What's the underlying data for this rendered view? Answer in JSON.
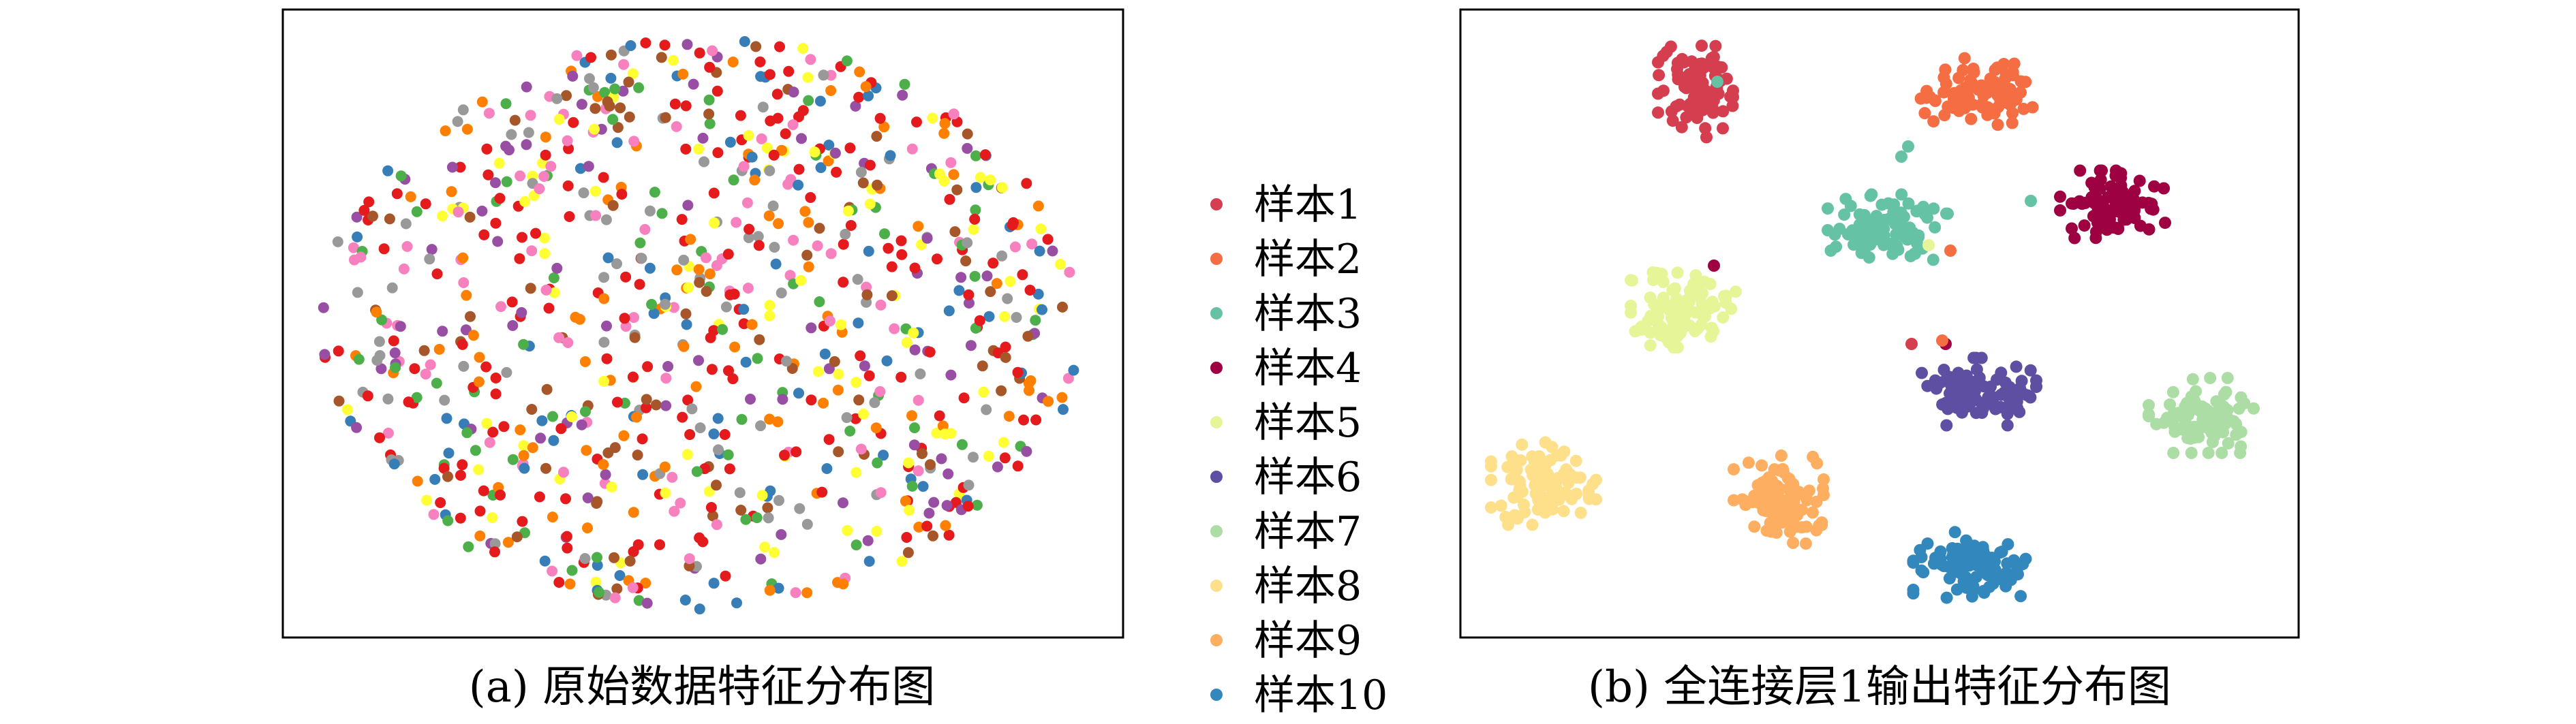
{
  "chart_data": [
    {
      "type": "scatter",
      "caption": "(a) 原始数据特征分布图",
      "grid": false,
      "ticks": false,
      "clusters": false
    },
    {
      "type": "scatter",
      "caption": "(b) 全连接层1输出特征分布图",
      "grid": false,
      "ticks": false,
      "clusters": true
    }
  ],
  "legend": {
    "placement": "center",
    "entries": [
      {
        "label": "样本1",
        "color": "#d53e4f"
      },
      {
        "label": "样本2",
        "color": "#f46d43"
      },
      {
        "label": "样本3",
        "color": "#66c2a5"
      },
      {
        "label": "样本4",
        "color": "#9e0142"
      },
      {
        "label": "样本5",
        "color": "#e6f598"
      },
      {
        "label": "样本6",
        "color": "#5e4fa2"
      },
      {
        "label": "样本7",
        "color": "#abdda4"
      },
      {
        "label": "样本8",
        "color": "#fee08b"
      },
      {
        "label": "样本9",
        "color": "#fdae61"
      },
      {
        "label": "样本10",
        "color": "#3288bd"
      }
    ]
  },
  "raw_palette": [
    "#e41a1c",
    "#ff7f00",
    "#4daf4a",
    "#984ea3",
    "#ffff33",
    "#f781bf",
    "#999999",
    "#377eb8",
    "#a65628",
    "#e41a1c"
  ]
}
